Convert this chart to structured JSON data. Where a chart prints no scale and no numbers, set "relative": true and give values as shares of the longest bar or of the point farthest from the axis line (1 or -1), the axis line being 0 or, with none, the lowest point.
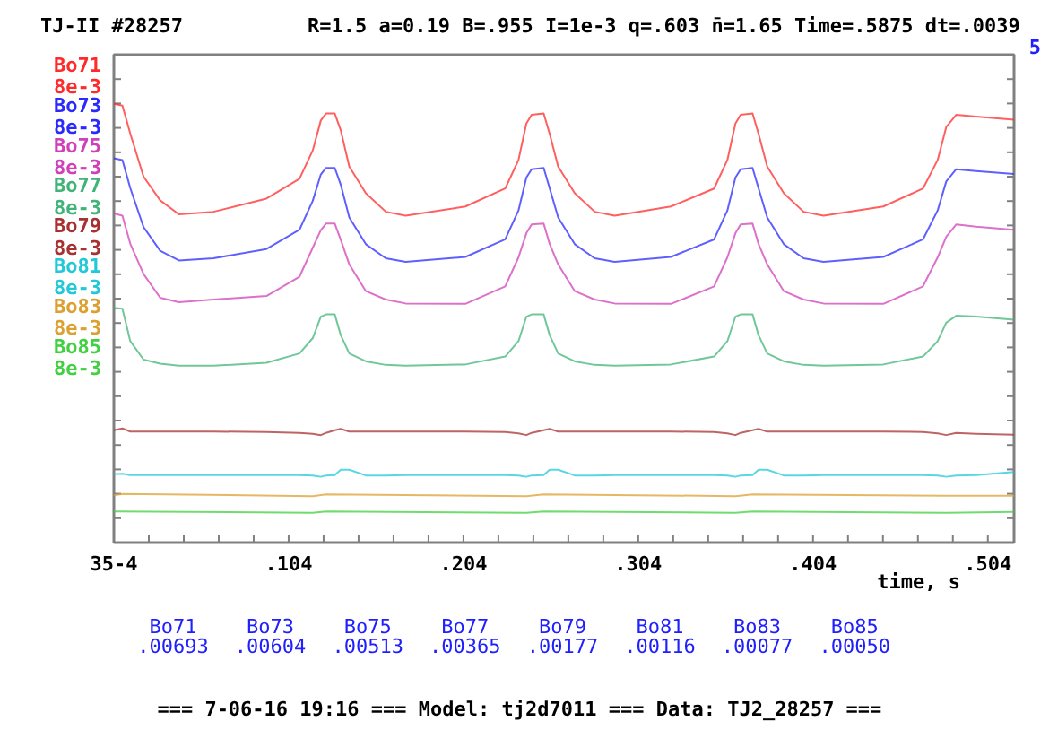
{
  "chart_data": {
    "type": "line",
    "title": "TJ-II #28257",
    "subtitle": "R=1.5  a=0.19 B=.955 I=1e-3 q=.603 n̄=1.65 Time=.5875 dt=.0039",
    "xlabel": "time, s",
    "annotations": [
      "5",
      "8e-3",
      "8e-3",
      "8e-3",
      "8e-3",
      "8e-3",
      "8e-3",
      "8e-3",
      "8e-3",
      "Bo71",
      ".00693",
      "Bo73",
      ".00604",
      "Bo75",
      ".00513",
      "Bo77",
      ".00365",
      "Bo79",
      ".00177",
      "Bo81",
      ".00116",
      "Bo83",
      ".00077",
      "Bo85",
      ".00050",
      "===  7-06-16 19:16 === Model: tj2d7011 === Data: TJ2_28257 ==="
    ],
    "x": [
      0.004,
      0.0089,
      0.0134,
      0.021,
      0.0305,
      0.0412,
      0.061,
      0.0913,
      0.1102,
      0.1178,
      0.1224,
      0.1254,
      0.1304,
      0.1338,
      0.1387,
      0.1482,
      0.1596,
      0.1709,
      0.2051,
      0.2279,
      0.2355,
      0.24,
      0.243,
      0.2499,
      0.2533,
      0.2582,
      0.2677,
      0.2791,
      0.2905,
      0.3227,
      0.3474,
      0.355,
      0.3596,
      0.3626,
      0.3694,
      0.3728,
      0.3778,
      0.3873,
      0.3986,
      0.41,
      0.4442,
      0.4669,
      0.4753,
      0.4802,
      0.4859,
      0.4973,
      0.5189
    ],
    "relative": true,
    "series": [
      {
        "name": "Bo71",
        "color": "#ff2a2a",
        "values": [
          1.0,
          0.996,
          0.932,
          0.834,
          0.78,
          0.748,
          0.754,
          0.784,
          0.829,
          0.894,
          0.962,
          0.978,
          0.978,
          0.94,
          0.857,
          0.796,
          0.754,
          0.745,
          0.766,
          0.807,
          0.872,
          0.955,
          0.975,
          0.978,
          0.932,
          0.857,
          0.796,
          0.754,
          0.745,
          0.766,
          0.807,
          0.872,
          0.955,
          0.975,
          0.978,
          0.932,
          0.857,
          0.796,
          0.754,
          0.745,
          0.766,
          0.807,
          0.872,
          0.947,
          0.975,
          0.971,
          0.964
        ]
      },
      {
        "name": "Bo73",
        "color": "#2a2aff",
        "values": [
          0.876,
          0.872,
          0.808,
          0.719,
          0.665,
          0.643,
          0.648,
          0.669,
          0.713,
          0.779,
          0.839,
          0.854,
          0.854,
          0.816,
          0.741,
          0.68,
          0.648,
          0.64,
          0.651,
          0.691,
          0.757,
          0.832,
          0.851,
          0.854,
          0.808,
          0.741,
          0.68,
          0.648,
          0.64,
          0.651,
          0.691,
          0.757,
          0.832,
          0.851,
          0.854,
          0.808,
          0.741,
          0.68,
          0.648,
          0.64,
          0.651,
          0.691,
          0.757,
          0.823,
          0.851,
          0.847,
          0.84
        ]
      },
      {
        "name": "Bo75",
        "color": "#d040b8",
        "values": [
          0.75,
          0.745,
          0.681,
          0.612,
          0.558,
          0.548,
          0.554,
          0.562,
          0.606,
          0.672,
          0.712,
          0.727,
          0.727,
          0.69,
          0.634,
          0.573,
          0.554,
          0.545,
          0.544,
          0.584,
          0.65,
          0.705,
          0.725,
          0.727,
          0.681,
          0.634,
          0.573,
          0.554,
          0.545,
          0.544,
          0.584,
          0.65,
          0.705,
          0.725,
          0.727,
          0.681,
          0.634,
          0.573,
          0.554,
          0.545,
          0.544,
          0.584,
          0.65,
          0.697,
          0.725,
          0.72,
          0.713
        ]
      },
      {
        "name": "Bo77",
        "color": "#40b478",
        "values": [
          0.535,
          0.533,
          0.459,
          0.417,
          0.408,
          0.403,
          0.403,
          0.41,
          0.431,
          0.466,
          0.515,
          0.52,
          0.52,
          0.473,
          0.431,
          0.413,
          0.405,
          0.403,
          0.406,
          0.424,
          0.459,
          0.515,
          0.52,
          0.52,
          0.473,
          0.431,
          0.413,
          0.405,
          0.403,
          0.406,
          0.424,
          0.459,
          0.515,
          0.52,
          0.52,
          0.473,
          0.431,
          0.413,
          0.405,
          0.403,
          0.406,
          0.424,
          0.459,
          0.501,
          0.517,
          0.515,
          0.508
        ]
      },
      {
        "name": "Bo79",
        "color": "#a83030",
        "values": [
          0.256,
          0.26,
          0.253,
          0.253,
          0.253,
          0.253,
          0.253,
          0.252,
          0.25,
          0.248,
          0.245,
          0.25,
          0.256,
          0.259,
          0.253,
          0.253,
          0.253,
          0.253,
          0.253,
          0.252,
          0.249,
          0.245,
          0.25,
          0.256,
          0.259,
          0.253,
          0.253,
          0.253,
          0.253,
          0.253,
          0.252,
          0.249,
          0.245,
          0.25,
          0.256,
          0.259,
          0.253,
          0.253,
          0.253,
          0.253,
          0.253,
          0.252,
          0.249,
          0.245,
          0.25,
          0.248,
          0.246
        ]
      },
      {
        "name": "Bo81",
        "color": "#20c8d8",
        "values": [
          0.156,
          0.157,
          0.154,
          0.154,
          0.154,
          0.154,
          0.154,
          0.154,
          0.154,
          0.153,
          0.15,
          0.153,
          0.154,
          0.166,
          0.166,
          0.153,
          0.153,
          0.154,
          0.154,
          0.154,
          0.153,
          0.15,
          0.153,
          0.154,
          0.166,
          0.166,
          0.153,
          0.153,
          0.154,
          0.154,
          0.154,
          0.153,
          0.15,
          0.153,
          0.154,
          0.166,
          0.166,
          0.153,
          0.153,
          0.154,
          0.154,
          0.154,
          0.153,
          0.15,
          0.153,
          0.154,
          0.161
        ]
      },
      {
        "name": "Bo83",
        "color": "#dca030",
        "x": [
          0.004,
          0.0089,
          0.1178,
          0.1254,
          0.24,
          0.2499,
          0.3596,
          0.3694,
          0.4802,
          0.5189
        ],
        "values": [
          0.108,
          0.111,
          0.106,
          0.11,
          0.106,
          0.11,
          0.106,
          0.11,
          0.107,
          0.107
        ]
      },
      {
        "name": "Bo85",
        "color": "#40d040",
        "x": [
          0.004,
          0.1178,
          0.1254,
          0.24,
          0.2499,
          0.3596,
          0.3694,
          0.4802,
          0.5189
        ],
        "values": [
          0.071,
          0.068,
          0.071,
          0.068,
          0.071,
          0.068,
          0.071,
          0.068,
          0.07
        ]
      }
    ],
    "xlim": [
      0.004,
      0.519
    ],
    "xticks": [
      {
        "value": 0.004,
        "label": "35-4"
      },
      {
        "value": 0.024,
        "label": null
      },
      {
        "value": 0.044,
        "label": null
      },
      {
        "value": 0.064,
        "label": null
      },
      {
        "value": 0.084,
        "label": null
      },
      {
        "value": 0.104,
        "label": ".104"
      },
      {
        "value": 0.124,
        "label": null
      },
      {
        "value": 0.144,
        "label": null
      },
      {
        "value": 0.164,
        "label": null
      },
      {
        "value": 0.184,
        "label": null
      },
      {
        "value": 0.204,
        "label": ".204"
      },
      {
        "value": 0.224,
        "label": null
      },
      {
        "value": 0.244,
        "label": null
      },
      {
        "value": 0.264,
        "label": null
      },
      {
        "value": 0.284,
        "label": null
      },
      {
        "value": 0.304,
        "label": ".304"
      },
      {
        "value": 0.324,
        "label": null
      },
      {
        "value": 0.344,
        "label": null
      },
      {
        "value": 0.364,
        "label": null
      },
      {
        "value": 0.384,
        "label": null
      },
      {
        "value": 0.404,
        "label": ".404"
      },
      {
        "value": 0.424,
        "label": null
      },
      {
        "value": 0.444,
        "label": null
      },
      {
        "value": 0.464,
        "label": null
      },
      {
        "value": 0.484,
        "label": null
      },
      {
        "value": 0.504,
        "label": ".504"
      }
    ],
    "grid": false,
    "tick_labels": "x"
  }
}
